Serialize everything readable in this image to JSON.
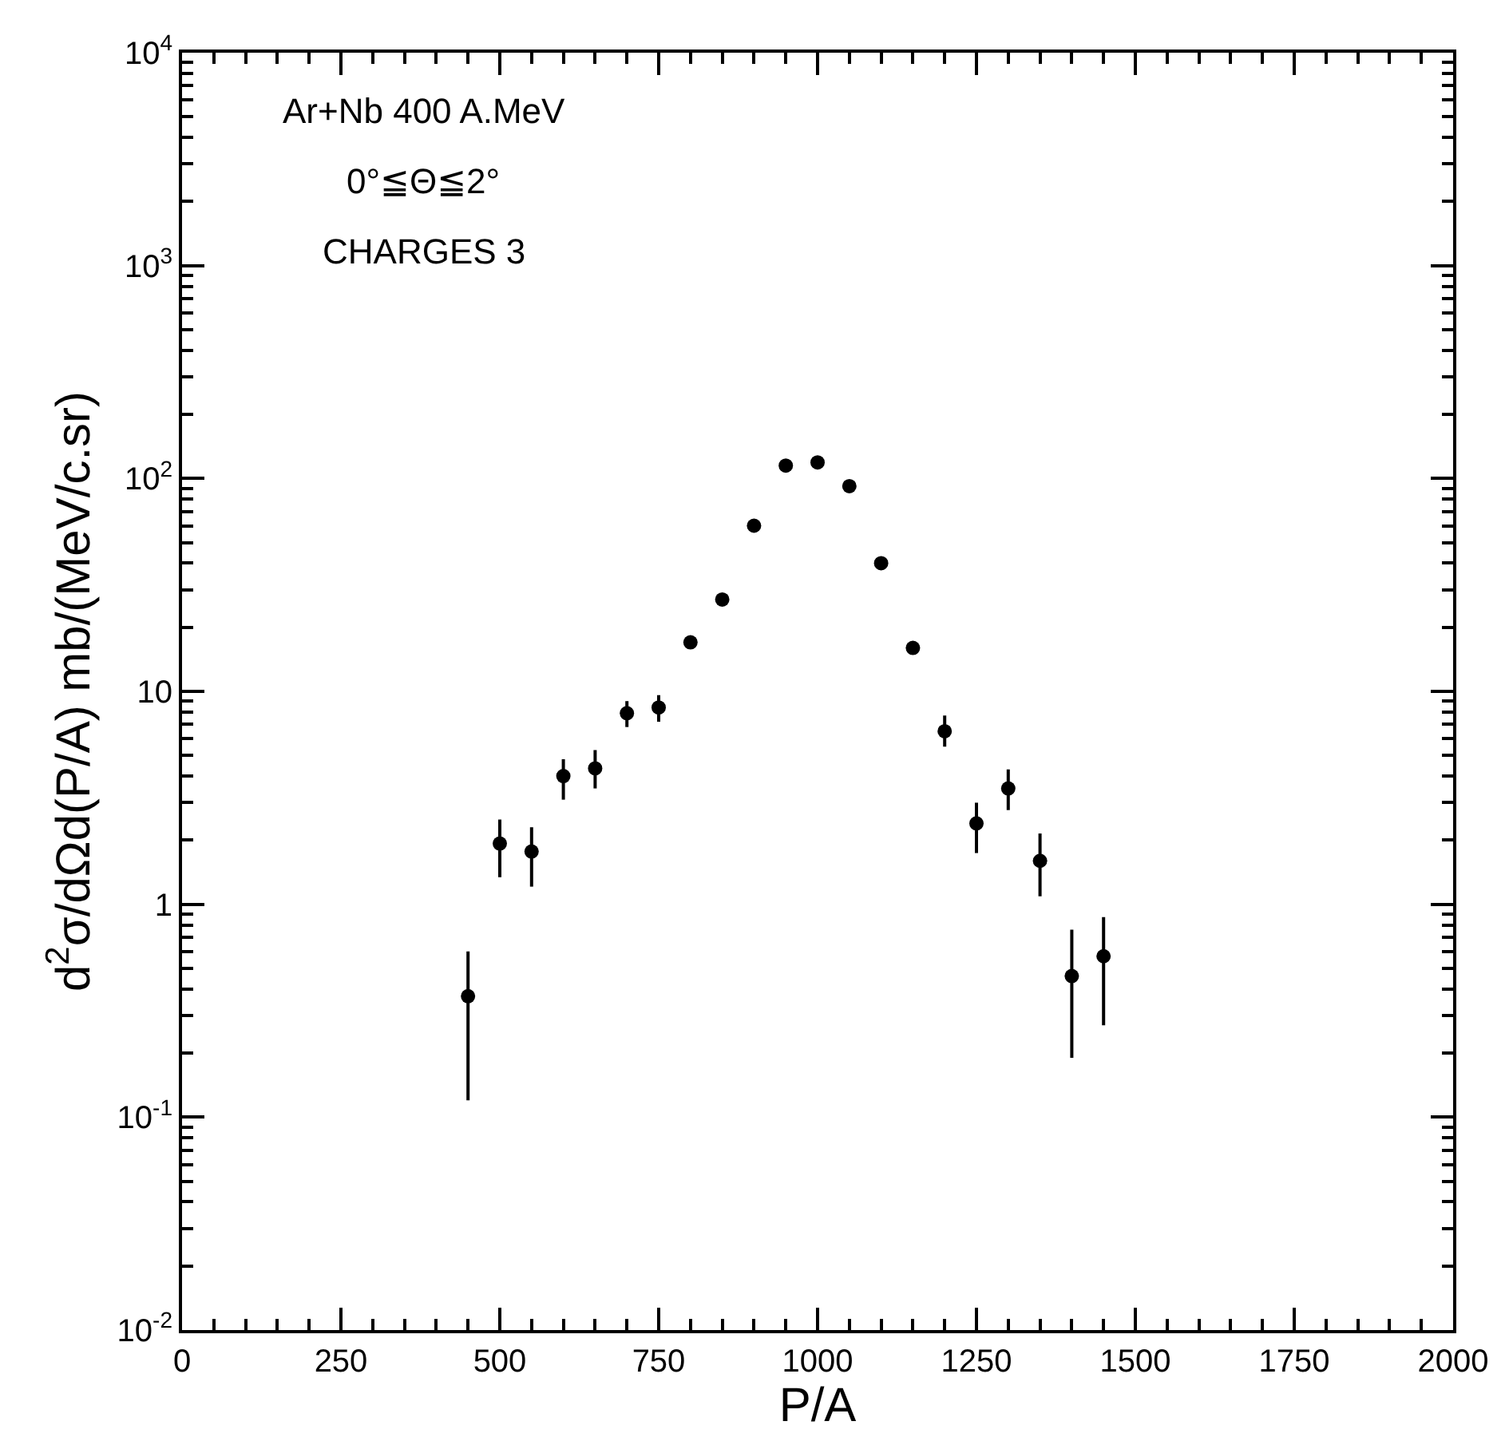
{
  "chart_data": {
    "type": "scatter",
    "xlabel": "P/A",
    "ylabel": "d$^{2}$σ/dΩd(P/A) mb/(MeV/c.sr)",
    "annotations": [
      "Ar+Nb 400 A.MeV",
      "0°≦Θ≦2°",
      "CHARGES 3"
    ],
    "x": [
      450,
      500,
      550,
      600,
      650,
      700,
      750,
      800,
      850,
      900,
      950,
      1000,
      1050,
      1100,
      1150,
      1200,
      1250,
      1300,
      1350,
      1400,
      1450
    ],
    "series": [
      {
        "color": "#000000",
        "values": [
          0.37,
          1.93,
          1.77,
          4.0,
          4.35,
          7.9,
          8.4,
          17,
          27,
          60,
          115,
          119,
          92,
          40,
          16,
          6.5,
          2.4,
          3.5,
          1.6,
          0.46,
          0.57
        ],
        "errors": [
          [
            0.12,
            0.6
          ],
          [
            1.34,
            2.5
          ],
          [
            1.21,
            2.3
          ],
          [
            3.1,
            4.8
          ],
          [
            3.5,
            5.3
          ],
          [
            6.8,
            9
          ],
          [
            7.2,
            9.6
          ],
          null,
          null,
          null,
          null,
          null,
          null,
          null,
          null,
          [
            5.5,
            7.7
          ],
          [
            1.74,
            3.0
          ],
          [
            2.77,
            4.3
          ],
          [
            1.09,
            2.15
          ],
          [
            0.19,
            0.76
          ],
          [
            0.27,
            0.87
          ]
        ]
      }
    ],
    "log": "y",
    "marker": "circle",
    "xlim": [
      0,
      2000
    ],
    "xticks": [
      0,
      250,
      500,
      750,
      1000,
      1250,
      1500,
      1750,
      2000
    ],
    "ylim": [
      0.01,
      10000
    ],
    "yticks": [
      {
        "value": 0.01,
        "label": "10$^{-2}$"
      },
      {
        "value": 0.1,
        "label": "10$^{-1}$"
      },
      1,
      10,
      {
        "value": 100,
        "label": "10$^{2}$"
      },
      {
        "value": 1000,
        "label": "10$^{3}$"
      },
      {
        "value": 10000,
        "label": "10$^{4}$"
      }
    ]
  }
}
